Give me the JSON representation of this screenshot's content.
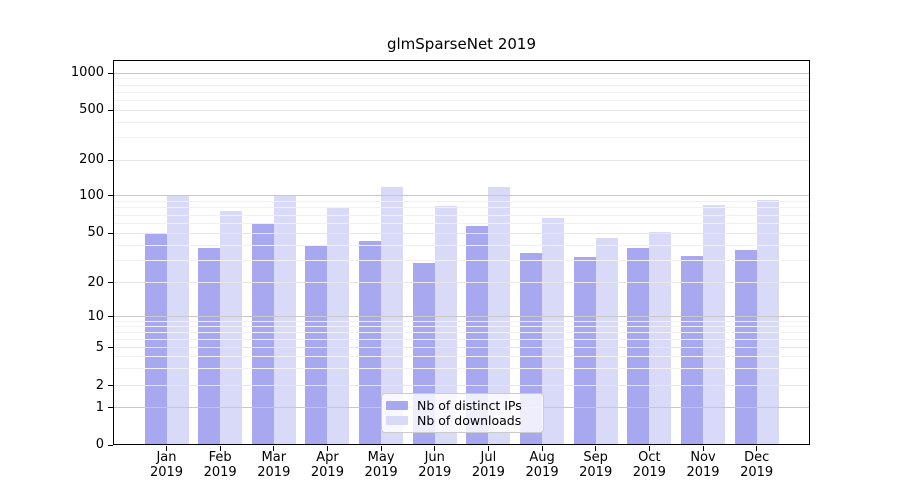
{
  "chart_data": {
    "type": "bar",
    "title": "glmSparseNet 2019",
    "year_label": "2019",
    "categories": [
      "Jan",
      "Feb",
      "Mar",
      "Apr",
      "May",
      "Jun",
      "Jul",
      "Aug",
      "Sep",
      "Oct",
      "Nov",
      "Dec"
    ],
    "series": [
      {
        "name": "Nb of distinct IPs",
        "color": "#a8a8f0",
        "values": [
          50,
          38,
          60,
          40,
          43,
          29,
          57,
          35,
          32,
          38,
          33,
          37
        ]
      },
      {
        "name": "Nb of downloads",
        "color": "#d9d9f8",
        "values": [
          100,
          75,
          100,
          80,
          118,
          83,
          118,
          66,
          46,
          51,
          84,
          92
        ]
      }
    ],
    "yticks": [
      1000,
      500,
      200,
      100,
      50,
      20,
      10,
      5,
      2,
      1,
      0
    ],
    "yscale": "symlog",
    "ylim": [
      0,
      1300
    ],
    "grid": true,
    "legend_position": "lower center"
  },
  "colors": {
    "grid_major": "#c8c8c8",
    "grid_mid": "#e7e7e7",
    "grid_minor": "#f1f1f1",
    "axis": "#000000",
    "legend_border": "#cccccc"
  }
}
